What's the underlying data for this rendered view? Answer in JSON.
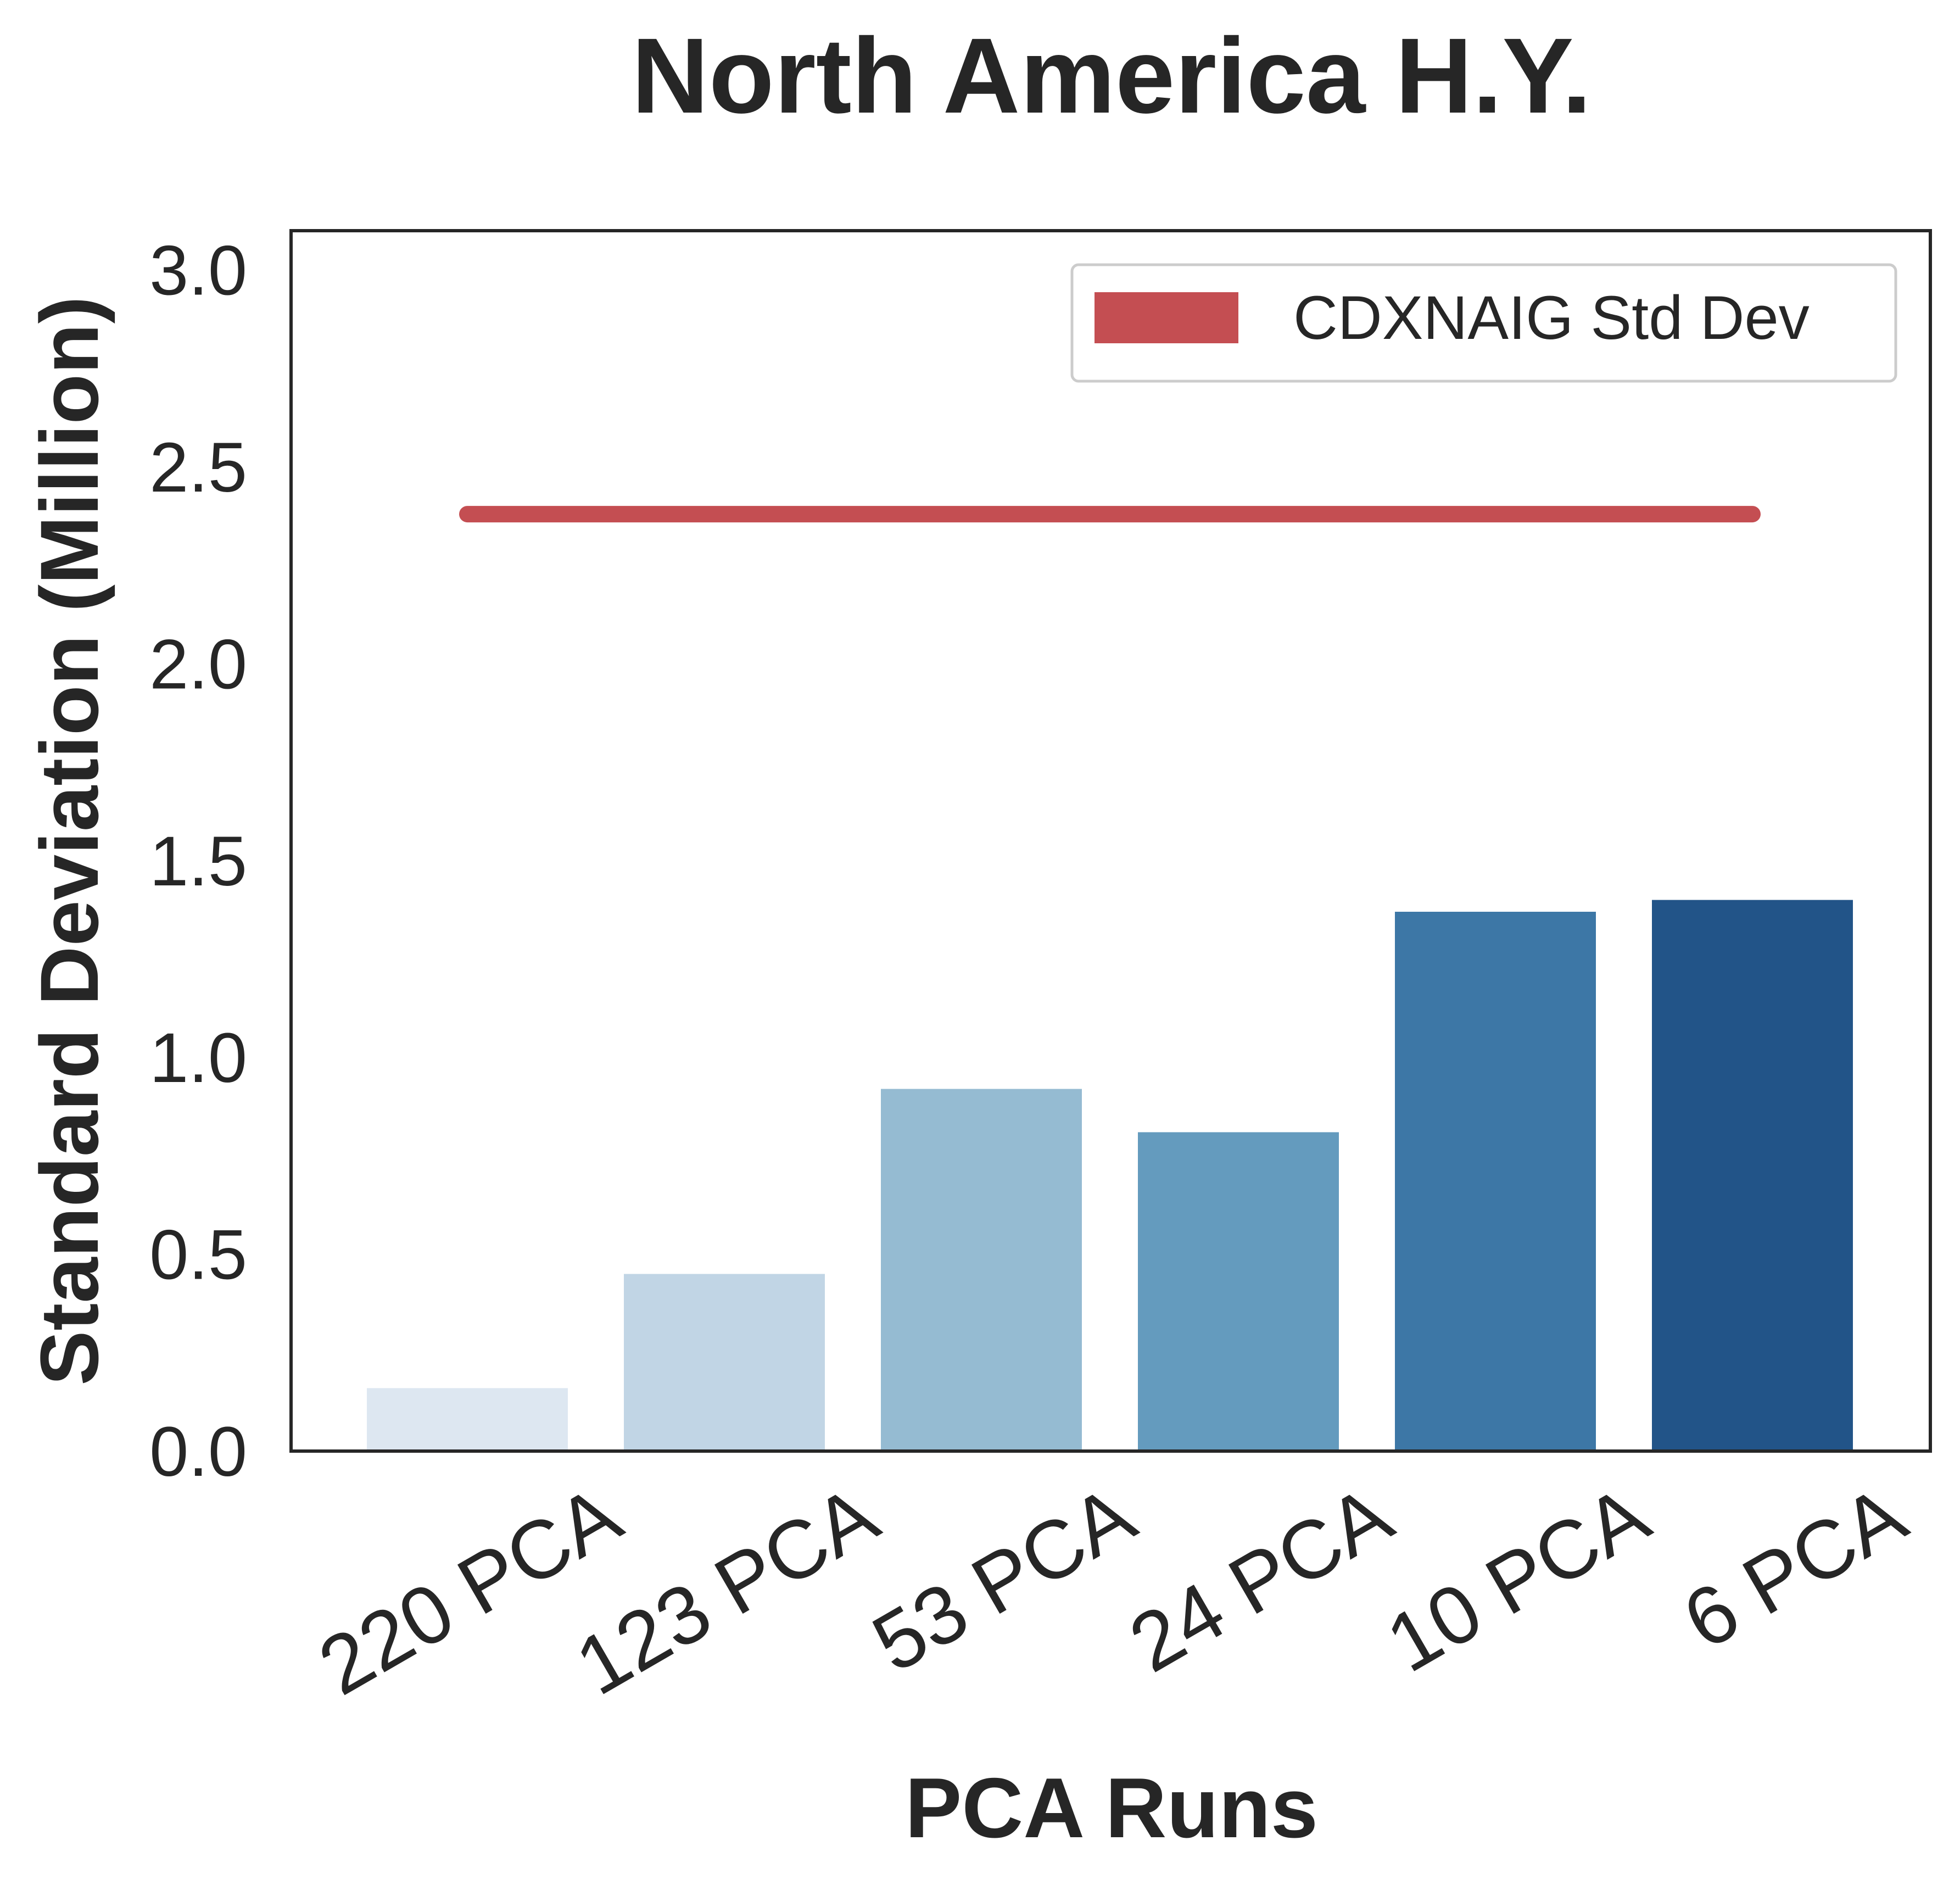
{
  "chart_data": {
    "type": "bar",
    "title": "North America H.Y.",
    "xlabel": "PCA Runs",
    "ylabel": "Standard Deviation (Million)",
    "categories": [
      "220 PCA",
      "123 PCA",
      "53 PCA",
      "24 PCA",
      "10 PCA",
      "6 PCA"
    ],
    "values": [
      0.16,
      0.45,
      0.92,
      0.81,
      1.37,
      1.4
    ],
    "bar_colors": [
      "#dde7f1",
      "#c1d5e5",
      "#95bbd2",
      "#649bbe",
      "#3d77a6",
      "#225488"
    ],
    "ylim": [
      0,
      3.1
    ],
    "yticks": [
      "0.0",
      "0.5",
      "1.0",
      "1.5",
      "2.0",
      "2.5",
      "3.0"
    ],
    "reference_line": {
      "name": "CDXNAIG Std Dev",
      "value": 2.38,
      "color": "#c44e52"
    },
    "legend": {
      "position": "top-right",
      "entries": [
        "CDXNAIG Std Dev"
      ]
    },
    "grid": false
  }
}
